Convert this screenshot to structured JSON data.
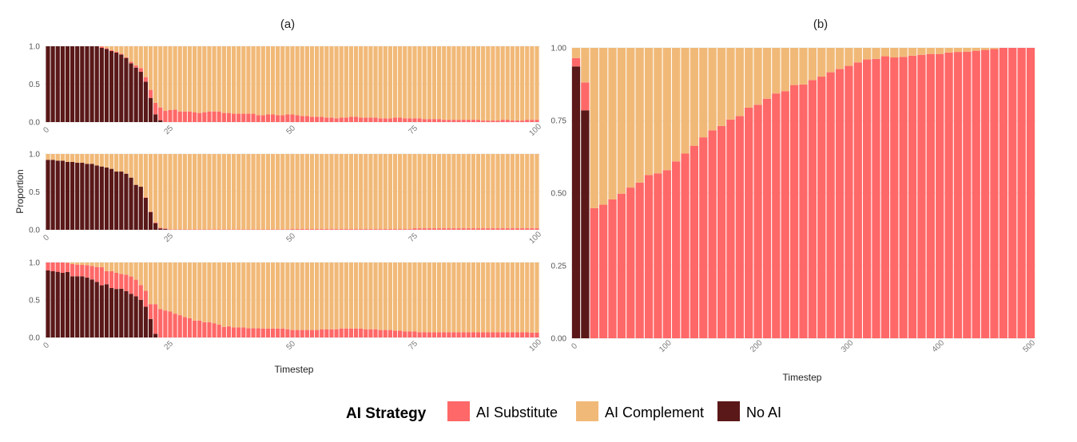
{
  "colors": {
    "AI Substitute": "#FF6868",
    "AI Complement": "#F1B978",
    "No AI": "#5A1818",
    "grid": "#ececec"
  },
  "legend": {
    "title": "AI Strategy",
    "entries": [
      {
        "label": "AI Substitute",
        "color": "#FF6868"
      },
      {
        "label": "AI Complement",
        "color": "#F1B978"
      },
      {
        "label": "No AI",
        "color": "#5A1818"
      }
    ],
    "placement": "bottom"
  },
  "chart_data": [
    {
      "type": "bar",
      "stacked": "fill",
      "title": "(a)",
      "xlabel": "Timestep",
      "ylabel": "Proportion",
      "xlim": [
        0,
        100
      ],
      "ylim": [
        0,
        1
      ],
      "xticks": [
        "0",
        "25",
        "50",
        "75",
        "100"
      ],
      "yticks": [
        "0.0",
        "0.5",
        "1.0"
      ],
      "grid": true,
      "stack_order": [
        "No AI",
        "AI Substitute",
        "AI Complement"
      ],
      "x": [
        0,
        1,
        2,
        3,
        4,
        5,
        6,
        7,
        8,
        9,
        10,
        11,
        12,
        13,
        14,
        15,
        16,
        17,
        18,
        19,
        20,
        21,
        22,
        23,
        24,
        25,
        26,
        27,
        28,
        29,
        30,
        31,
        32,
        33,
        34,
        35,
        36,
        37,
        38,
        39,
        40,
        41,
        42,
        43,
        44,
        45,
        46,
        47,
        48,
        49,
        50,
        51,
        52,
        53,
        54,
        55,
        56,
        57,
        58,
        59,
        60,
        61,
        62,
        63,
        64,
        65,
        66,
        67,
        68,
        69,
        70,
        71,
        72,
        73,
        74,
        75,
        76,
        77,
        78,
        79,
        80,
        81,
        82,
        83,
        84,
        85,
        86,
        87,
        88,
        89,
        90,
        91,
        92,
        93,
        94,
        95,
        96,
        97,
        98,
        99,
        100
      ],
      "panels": [
        {
          "series": [
            {
              "name": "No AI",
              "values": [
                1,
                1,
                1,
                1,
                1,
                1,
                1,
                1,
                1,
                1,
                1,
                0.979,
                0.965,
                0.937,
                0.916,
                0.891,
                0.846,
                0.775,
                0.719,
                0.663,
                0.533,
                0.319,
                0.102,
                0.025,
                0,
                0,
                0,
                0,
                0,
                0,
                0,
                0,
                0,
                0,
                0,
                0,
                0,
                0,
                0,
                0,
                0,
                0,
                0,
                0,
                0,
                0,
                0,
                0,
                0,
                0,
                0,
                0,
                0,
                0,
                0,
                0,
                0,
                0,
                0,
                0,
                0,
                0,
                0,
                0,
                0,
                0,
                0,
                0,
                0,
                0,
                0,
                0,
                0,
                0,
                0,
                0,
                0,
                0,
                0,
                0,
                0,
                0,
                0,
                0,
                0,
                0,
                0,
                0,
                0,
                0,
                0,
                0,
                0,
                0,
                0,
                0,
                0,
                0,
                0,
                0,
                0
              ]
            },
            {
              "name": "AI Substitute",
              "values": [
                0,
                0,
                0,
                0,
                0,
                0,
                0,
                0,
                0,
                0,
                0,
                0.016,
                0.01,
                0.01,
                0.01,
                0.01,
                0.01,
                0.02,
                0.03,
                0.05,
                0.06,
                0.106,
                0.151,
                0.168,
                0.147,
                0.158,
                0.165,
                0.14,
                0.14,
                0.14,
                0.13,
                0.12,
                0.13,
                0.14,
                0.14,
                0.14,
                0.12,
                0.12,
                0.11,
                0.11,
                0.11,
                0.11,
                0.11,
                0.09,
                0.09,
                0.1,
                0.1,
                0.09,
                0.09,
                0.1,
                0.1,
                0.09,
                0.08,
                0.08,
                0.07,
                0.07,
                0.07,
                0.06,
                0.06,
                0.05,
                0.06,
                0.06,
                0.07,
                0.07,
                0.06,
                0.06,
                0.06,
                0.06,
                0.05,
                0.05,
                0.05,
                0.06,
                0.06,
                0.05,
                0.05,
                0.05,
                0.05,
                0.04,
                0.04,
                0.04,
                0.04,
                0.03,
                0.03,
                0.03,
                0.03,
                0.03,
                0.03,
                0.03,
                0.03,
                0.02,
                0.02,
                0.02,
                0.02,
                0.03,
                0.03,
                0.02,
                0.02,
                0.02,
                0.03,
                0.03,
                0.03
              ]
            }
          ]
        },
        {
          "series": [
            {
              "name": "No AI",
              "values": [
                0.923,
                0.923,
                0.912,
                0.912,
                0.895,
                0.895,
                0.884,
                0.884,
                0.87,
                0.87,
                0.849,
                0.835,
                0.821,
                0.804,
                0.768,
                0.768,
                0.74,
                0.688,
                0.593,
                0.568,
                0.421,
                0.235,
                0.088,
                0.018,
                0.01,
                0,
                0,
                0,
                0,
                0,
                0,
                0,
                0,
                0,
                0,
                0,
                0,
                0,
                0,
                0,
                0,
                0,
                0,
                0,
                0,
                0,
                0,
                0,
                0,
                0,
                0,
                0,
                0,
                0,
                0,
                0,
                0,
                0,
                0,
                0,
                0,
                0,
                0,
                0,
                0,
                0,
                0,
                0,
                0,
                0,
                0,
                0,
                0,
                0,
                0,
                0,
                0,
                0,
                0,
                0,
                0,
                0,
                0,
                0,
                0,
                0,
                0,
                0,
                0,
                0,
                0,
                0,
                0,
                0,
                0,
                0,
                0,
                0,
                0,
                0,
                0
              ]
            },
            {
              "name": "AI Substitute",
              "values": [
                0,
                0,
                0,
                0,
                0,
                0,
                0,
                0,
                0,
                0,
                0,
                0,
                0,
                0,
                0,
                0,
                0,
                0,
                0,
                0,
                0.005,
                0.005,
                0.01,
                0.01,
                0.008,
                0.005,
                0.005,
                0.005,
                0.005,
                0.005,
                0.005,
                0.005,
                0.005,
                0.005,
                0.005,
                0.005,
                0.005,
                0.005,
                0.005,
                0.005,
                0.005,
                0.005,
                0.005,
                0.005,
                0.005,
                0.005,
                0.005,
                0.005,
                0.005,
                0.005,
                0.01,
                0.01,
                0.01,
                0.01,
                0.01,
                0.01,
                0.01,
                0.01,
                0.01,
                0.01,
                0.01,
                0.01,
                0.01,
                0.01,
                0.01,
                0.01,
                0.01,
                0.01,
                0.01,
                0.01,
                0.01,
                0.01,
                0.01,
                0.01,
                0.01,
                0.02,
                0.02,
                0.02,
                0.02,
                0.02,
                0.02,
                0.02,
                0.02,
                0.02,
                0.02,
                0.02,
                0.02,
                0.02,
                0.02,
                0.02,
                0.02,
                0.02,
                0.02,
                0.02,
                0.02,
                0.02,
                0.02,
                0.02,
                0.02,
                0.02,
                0.02
              ]
            }
          ]
        },
        {
          "series": [
            {
              "name": "No AI",
              "values": [
                0.894,
                0.883,
                0.876,
                0.862,
                0.873,
                0.816,
                0.816,
                0.816,
                0.799,
                0.774,
                0.742,
                0.696,
                0.71,
                0.66,
                0.647,
                0.65,
                0.618,
                0.583,
                0.548,
                0.502,
                0.41,
                0.247,
                0.049,
                0,
                0,
                0,
                0,
                0,
                0,
                0,
                0,
                0,
                0,
                0,
                0,
                0,
                0,
                0,
                0,
                0,
                0,
                0,
                0,
                0,
                0,
                0,
                0,
                0,
                0,
                0,
                0,
                0,
                0,
                0,
                0,
                0,
                0,
                0,
                0,
                0,
                0,
                0,
                0,
                0,
                0,
                0,
                0,
                0,
                0,
                0,
                0,
                0,
                0,
                0,
                0,
                0,
                0,
                0,
                0,
                0,
                0,
                0,
                0,
                0,
                0,
                0,
                0,
                0,
                0,
                0,
                0,
                0,
                0,
                0,
                0,
                0,
                0,
                0,
                0,
                0,
                0
              ]
            },
            {
              "name": "AI Substitute",
              "values": [
                0.106,
                0.117,
                0.124,
                0.138,
                0.122,
                0.163,
                0.156,
                0.152,
                0.166,
                0.18,
                0.198,
                0.24,
                0.173,
                0.223,
                0.215,
                0.198,
                0.219,
                0.23,
                0.222,
                0.198,
                0.212,
                0.198,
                0.396,
                0.378,
                0.36,
                0.346,
                0.318,
                0.297,
                0.272,
                0.258,
                0.226,
                0.226,
                0.205,
                0.205,
                0.19,
                0.17,
                0.141,
                0.148,
                0.134,
                0.134,
                0.134,
                0.124,
                0.124,
                0.124,
                0.12,
                0.12,
                0.12,
                0.12,
                0.12,
                0.11,
                0.1,
                0.1,
                0.1,
                0.1,
                0.1,
                0.1,
                0.11,
                0.11,
                0.11,
                0.11,
                0.12,
                0.12,
                0.12,
                0.12,
                0.12,
                0.11,
                0.11,
                0.11,
                0.1,
                0.1,
                0.1,
                0.09,
                0.09,
                0.08,
                0.08,
                0.08,
                0.07,
                0.07,
                0.07,
                0.07,
                0.07,
                0.07,
                0.07,
                0.07,
                0.07,
                0.07,
                0.07,
                0.07,
                0.07,
                0.07,
                0.07,
                0.07,
                0.07,
                0.07,
                0.07,
                0.07,
                0.07,
                0.07,
                0.07,
                0.065,
                0.065
              ]
            }
          ]
        }
      ]
    },
    {
      "type": "bar",
      "stacked": "fill",
      "title": "(b)",
      "xlabel": "Timestep",
      "ylabel": "",
      "xlim": [
        0,
        500
      ],
      "ylim": [
        0,
        1
      ],
      "xticks": [
        "0",
        "100",
        "200",
        "300",
        "400",
        "500"
      ],
      "yticks": [
        "0.00",
        "0.25",
        "0.50",
        "0.75",
        "1.00"
      ],
      "grid": true,
      "stack_order": [
        "No AI",
        "AI Substitute",
        "AI Complement"
      ],
      "x": [
        0,
        10,
        20,
        30,
        40,
        50,
        60,
        70,
        80,
        90,
        100,
        110,
        120,
        130,
        140,
        150,
        160,
        170,
        180,
        190,
        200,
        210,
        220,
        230,
        240,
        250,
        260,
        270,
        280,
        290,
        300,
        310,
        320,
        330,
        340,
        350,
        360,
        370,
        380,
        390,
        400,
        410,
        420,
        430,
        440,
        450,
        460,
        470,
        480,
        490,
        500
      ],
      "series": [
        {
          "name": "No AI",
          "values": [
            0.936,
            0.785,
            0,
            0,
            0,
            0,
            0,
            0,
            0,
            0,
            0,
            0,
            0,
            0,
            0,
            0,
            0,
            0,
            0,
            0,
            0,
            0,
            0,
            0,
            0,
            0,
            0,
            0,
            0,
            0,
            0,
            0,
            0,
            0,
            0,
            0,
            0,
            0,
            0,
            0,
            0,
            0,
            0,
            0,
            0,
            0,
            0,
            0,
            0,
            0,
            0
          ]
        },
        {
          "name": "AI Substitute",
          "values": [
            0.029,
            0.096,
            0.448,
            0.46,
            0.478,
            0.498,
            0.519,
            0.536,
            0.562,
            0.568,
            0.579,
            0.609,
            0.636,
            0.663,
            0.692,
            0.716,
            0.731,
            0.753,
            0.765,
            0.794,
            0.804,
            0.825,
            0.843,
            0.851,
            0.872,
            0.874,
            0.889,
            0.901,
            0.916,
            0.927,
            0.938,
            0.95,
            0.96,
            0.962,
            0.971,
            0.967,
            0.969,
            0.973,
            0.976,
            0.979,
            0.979,
            0.984,
            0.986,
            0.987,
            0.99,
            0.993,
            0.996,
            1,
            1,
            1,
            1
          ]
        }
      ]
    }
  ]
}
